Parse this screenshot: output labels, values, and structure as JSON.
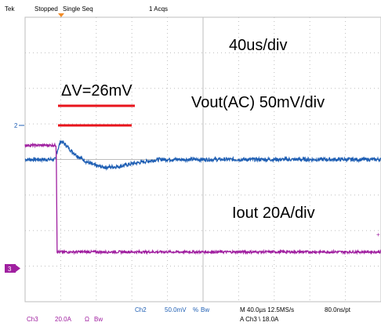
{
  "header": {
    "brand": "Tek",
    "acq_state": "Stopped",
    "mode": "Single Seq",
    "acq_count": "1 Acqs"
  },
  "annotations": {
    "timebase": "40us/div",
    "delta_v": "ΔV=26mV",
    "vout_label": "Vout(AC) 50mV/div",
    "iout_label": "Iout 20A/div"
  },
  "markers": {
    "ch2": "2",
    "ch3": "3"
  },
  "footer": {
    "ch3_label": "Ch3",
    "ch3_scale": "20.0A",
    "ch3_coupling": "Ω",
    "ch3_bw": "Bw",
    "ch2_label": "Ch2",
    "ch2_scale": "50.0mV",
    "ch2_coupling": "%",
    "ch2_bw": "Bw",
    "horiz": "M 40.0µs 12.5MS/s",
    "record": "80.0ns/pt",
    "trigger": "A Ch3 \\ 18.0A"
  },
  "colors": {
    "ch2": "#1f5fb4",
    "ch3": "#a020a0",
    "annotation_lines": "#e8141c",
    "grid": "#bdbdbd",
    "trigger_marker": "#f28c28",
    "footer_blue": "#1f5fb4",
    "footer_purple": "#a020a0"
  },
  "chart_data": [
    {
      "type": "line",
      "series": [
        {
          "name": "Ch2",
          "x_unit": "us",
          "y_unit": "mV",
          "x": [
            -160,
            -125,
            -125,
            -120,
            -114,
            -108,
            -100,
            -90,
            -80,
            -70,
            -55,
            -40,
            -25,
            -10,
            40,
            120,
            240
          ],
          "y": [
            0,
            0,
            8,
            26,
            20,
            12,
            4,
            -4,
            -9,
            -11,
            -10,
            -6,
            -3,
            0,
            0,
            0,
            0
          ]
        },
        {
          "name": "Ch3",
          "x_unit": "us",
          "y_unit": "A",
          "x": [
            -160,
            -125,
            -124,
            240
          ],
          "y": [
            30,
            30,
            0,
            0
          ]
        }
      ],
      "xlim": [
        -160,
        240
      ],
      "ch2_ylim": [
        -200,
        200
      ],
      "ch3_ylim": [
        -14,
        66
      ],
      "grid": true,
      "divisions": {
        "horizontal": 10,
        "vertical": 8
      }
    }
  ]
}
